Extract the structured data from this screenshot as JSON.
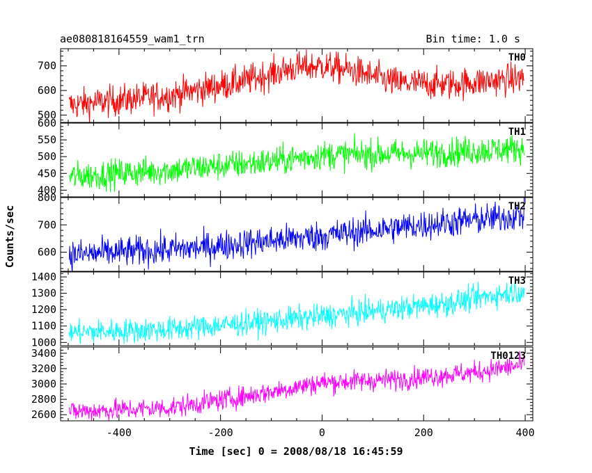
{
  "chart_data": {
    "type": "line",
    "title": "ae080818164559_wam1_trn",
    "subtitle": "Bin time: 1.0 s",
    "xlabel": "Time [sec] 0 = 2008/08/18 16:45:59",
    "ylabel": "Counts/sec",
    "xlim": [
      -515,
      415
    ],
    "x_ticks": [
      -400,
      -200,
      0,
      200,
      400
    ],
    "x_sampling": {
      "start": -498,
      "end": 398,
      "step": 1
    },
    "panels": [
      {
        "name": "TH0",
        "color": "#ff0000",
        "ylim": [
          470,
          770
        ],
        "y_ticks": [
          500,
          600,
          700
        ],
        "trend": [
          [
            -498,
            540
          ],
          [
            -300,
            580
          ],
          [
            -150,
            640
          ],
          [
            -60,
            690
          ],
          [
            0,
            700
          ],
          [
            60,
            680
          ],
          [
            150,
            630
          ],
          [
            250,
            625
          ],
          [
            398,
            650
          ]
        ],
        "noise": 32
      },
      {
        "name": "TH1",
        "color": "#00ff00",
        "ylim": [
          380,
          600
        ],
        "y_ticks": [
          400,
          450,
          500,
          550,
          600
        ],
        "trend": [
          [
            -498,
            440
          ],
          [
            -300,
            460
          ],
          [
            -100,
            485
          ],
          [
            0,
            505
          ],
          [
            200,
            510
          ],
          [
            398,
            525
          ]
        ],
        "noise": 22
      },
      {
        "name": "TH2",
        "color": "#0000ff",
        "ylim": [
          530,
          800
        ],
        "y_ticks": [
          600,
          700,
          800
        ],
        "trend": [
          [
            -498,
            590
          ],
          [
            -250,
            615
          ],
          [
            0,
            660
          ],
          [
            200,
            700
          ],
          [
            398,
            735
          ]
        ],
        "noise": 28
      },
      {
        "name": "TH3",
        "color": "#00ffff",
        "ylim": [
          980,
          1430
        ],
        "y_ticks": [
          1000,
          1100,
          1200,
          1300,
          1400
        ],
        "trend": [
          [
            -498,
            1060
          ],
          [
            -300,
            1080
          ],
          [
            -100,
            1130
          ],
          [
            100,
            1190
          ],
          [
            250,
            1240
          ],
          [
            398,
            1320
          ]
        ],
        "noise": 38
      },
      {
        "name": "TH0123",
        "color": "#ff00ff",
        "ylim": [
          2520,
          3480
        ],
        "y_ticks": [
          2600,
          2800,
          3000,
          3200,
          3400
        ],
        "trend": [
          [
            -498,
            2640
          ],
          [
            -300,
            2690
          ],
          [
            -150,
            2840
          ],
          [
            0,
            3020
          ],
          [
            150,
            3060
          ],
          [
            300,
            3150
          ],
          [
            398,
            3250
          ]
        ],
        "noise": 70
      }
    ]
  }
}
